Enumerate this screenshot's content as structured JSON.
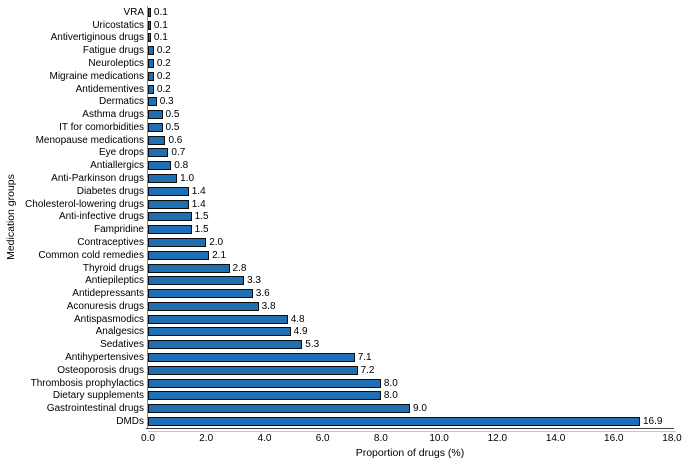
{
  "chart_data": {
    "type": "bar",
    "orientation": "horizontal",
    "title": "",
    "xlabel": "Proportion of drugs (%)",
    "ylabel": "Medication groups",
    "xlim": [
      0,
      18
    ],
    "x_ticks": [
      "0.0",
      "2.0",
      "4.0",
      "6.0",
      "8.0",
      "10.0",
      "12.0",
      "14.0",
      "16.0",
      "18.0"
    ],
    "grid": false,
    "legend": false,
    "bar_color": "#1f6fb5",
    "bar_border_color": "#0d0d0d",
    "categories": [
      "VRA",
      "Uricostatics",
      "Antivertiginous drugs",
      "Fatigue drugs",
      "Neuroleptics",
      "Migraine medications",
      "Antidementives",
      "Dermatics",
      "Asthma drugs",
      "IT for comorbidities",
      "Menopause medications",
      "Eye drops",
      "Antiallergics",
      "Anti-Parkinson drugs",
      "Diabetes drugs",
      "Cholesterol-lowering drugs",
      "Anti-infective drugs",
      "Fampridine",
      "Contraceptives",
      "Common cold remedies",
      "Thyroid drugs",
      "Antiepileptics",
      "Antidepressants",
      "Aconuresis drugs",
      "Antispasmodics",
      "Analgesics",
      "Sedatives",
      "Antihypertensives",
      "Osteoporosis drugs",
      "Thrombosis prophylactics",
      "Dietary supplements",
      "Gastrointestinal drugs",
      "DMDs"
    ],
    "values": [
      0.1,
      0.1,
      0.1,
      0.2,
      0.2,
      0.2,
      0.2,
      0.3,
      0.5,
      0.5,
      0.6,
      0.7,
      0.8,
      1.0,
      1.4,
      1.4,
      1.5,
      1.5,
      2.0,
      2.1,
      2.8,
      3.3,
      3.6,
      3.8,
      4.8,
      4.9,
      5.3,
      7.1,
      7.2,
      8.0,
      8.0,
      9.0,
      16.9
    ],
    "value_labels": [
      "0.1",
      "0.1",
      "0.1",
      "0.2",
      "0.2",
      "0.2",
      "0.2",
      "0.3",
      "0.5",
      "0.5",
      "0.6",
      "0.7",
      "0.8",
      "1.0",
      "1.4",
      "1.4",
      "1.5",
      "1.5",
      "2.0",
      "2.1",
      "2.8",
      "3.3",
      "3.6",
      "3.8",
      "4.8",
      "4.9",
      "5.3",
      "7.1",
      "7.2",
      "8.0",
      "8.0",
      "9.0",
      "16.9"
    ]
  }
}
